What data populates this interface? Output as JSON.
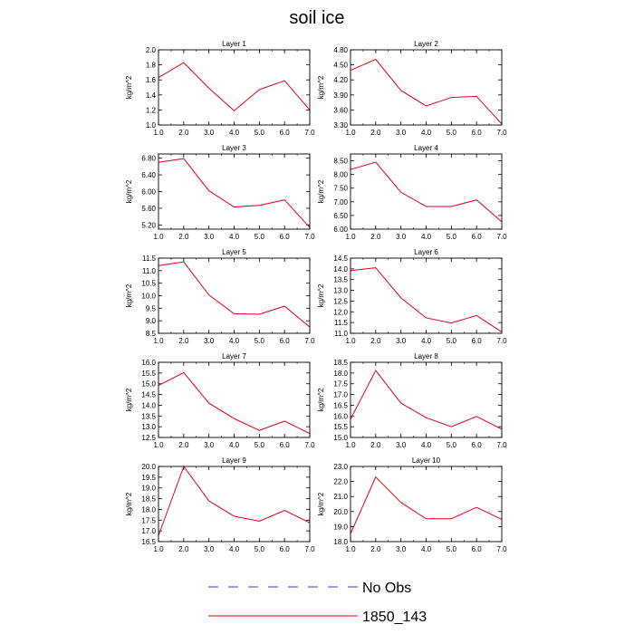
{
  "title": "soil ice",
  "colors": {
    "model_line": "#e8001c",
    "obs_line": "#3a3ad0",
    "axis": "#000000"
  },
  "legend": [
    {
      "label": "No Obs",
      "style": "dashed",
      "color": "#3a3ad0"
    },
    {
      "label": "1850_143",
      "style": "solid",
      "color": "#e8001c"
    }
  ],
  "chart_data": [
    {
      "type": "line",
      "title": "Layer 1",
      "ylabel": "kg/m^2",
      "x": [
        1,
        2,
        3,
        4,
        5,
        6,
        7
      ],
      "xlim": [
        1,
        7
      ],
      "xticks": [
        "1.0",
        "2.0",
        "3.0",
        "4.0",
        "5.0",
        "6.0",
        "7.0"
      ],
      "ylim": [
        1.0,
        2.0
      ],
      "yticks": [
        "1.0",
        "1.2",
        "1.4",
        "1.6",
        "1.8",
        "2.0"
      ],
      "series": [
        {
          "name": "1850_143",
          "values": [
            1.63,
            1.83,
            1.49,
            1.19,
            1.47,
            1.59,
            1.2
          ]
        }
      ]
    },
    {
      "type": "line",
      "title": "Layer 2",
      "ylabel": "kg/m^2",
      "x": [
        1,
        2,
        3,
        4,
        5,
        6,
        7
      ],
      "xlim": [
        1,
        7
      ],
      "xticks": [
        "1.0",
        "2.0",
        "3.0",
        "4.0",
        "5.0",
        "6.0",
        "7.0"
      ],
      "ylim": [
        3.3,
        4.8
      ],
      "yticks": [
        "3.30",
        "3.60",
        "3.90",
        "4.20",
        "4.50",
        "4.80"
      ],
      "series": [
        {
          "name": "1850_143",
          "values": [
            4.39,
            4.61,
            3.99,
            3.68,
            3.85,
            3.87,
            3.32
          ]
        }
      ]
    },
    {
      "type": "line",
      "title": "Layer 3",
      "ylabel": "kg/m^2",
      "x": [
        1,
        2,
        3,
        4,
        5,
        6,
        7
      ],
      "xlim": [
        1,
        7
      ],
      "xticks": [
        "1.0",
        "2.0",
        "3.0",
        "4.0",
        "5.0",
        "6.0",
        "7.0"
      ],
      "ylim": [
        5.1,
        6.9
      ],
      "yticks": [
        "5.20",
        "5.60",
        "6.00",
        "6.40",
        "6.80"
      ],
      "series": [
        {
          "name": "1850_143",
          "values": [
            6.7,
            6.79,
            6.02,
            5.63,
            5.67,
            5.8,
            5.14
          ]
        }
      ]
    },
    {
      "type": "line",
      "title": "Layer 4",
      "ylabel": "kg/m^2",
      "x": [
        1,
        2,
        3,
        4,
        5,
        6,
        7
      ],
      "xlim": [
        1,
        7
      ],
      "xticks": [
        "1.0",
        "2.0",
        "3.0",
        "4.0",
        "5.0",
        "6.0",
        "7.0"
      ],
      "ylim": [
        6.0,
        8.75
      ],
      "yticks": [
        "6.00",
        "6.50",
        "7.00",
        "7.50",
        "8.00",
        "8.50"
      ],
      "series": [
        {
          "name": "1850_143",
          "values": [
            8.18,
            8.45,
            7.35,
            6.83,
            6.83,
            7.07,
            6.27
          ]
        }
      ]
    },
    {
      "type": "line",
      "title": "Layer 5",
      "ylabel": "kg/m^2",
      "x": [
        1,
        2,
        3,
        4,
        5,
        6,
        7
      ],
      "xlim": [
        1,
        7
      ],
      "xticks": [
        "1.0",
        "2.0",
        "3.0",
        "4.0",
        "5.0",
        "6.0",
        "7.0"
      ],
      "ylim": [
        8.5,
        11.5
      ],
      "yticks": [
        "8.5",
        "9.0",
        "9.5",
        "10.0",
        "10.5",
        "11.0",
        "11.5"
      ],
      "series": [
        {
          "name": "1850_143",
          "values": [
            11.2,
            11.35,
            10.03,
            9.28,
            9.26,
            9.58,
            8.75
          ]
        }
      ]
    },
    {
      "type": "line",
      "title": "Layer 6",
      "ylabel": "kg/m^2",
      "x": [
        1,
        2,
        3,
        4,
        5,
        6,
        7
      ],
      "xlim": [
        1,
        7
      ],
      "xticks": [
        "1.0",
        "2.0",
        "3.0",
        "4.0",
        "5.0",
        "6.0",
        "7.0"
      ],
      "ylim": [
        11.0,
        14.5
      ],
      "yticks": [
        "11.0",
        "11.5",
        "12.0",
        "12.5",
        "13.0",
        "13.5",
        "14.0",
        "14.5"
      ],
      "series": [
        {
          "name": "1850_143",
          "values": [
            13.92,
            14.05,
            12.65,
            11.72,
            11.48,
            11.83,
            11.06
          ]
        }
      ]
    },
    {
      "type": "line",
      "title": "Layer 7",
      "ylabel": "kg/m^2",
      "x": [
        1,
        2,
        3,
        4,
        5,
        6,
        7
      ],
      "xlim": [
        1,
        7
      ],
      "xticks": [
        "1.0",
        "2.0",
        "3.0",
        "4.0",
        "5.0",
        "6.0",
        "7.0"
      ],
      "ylim": [
        12.5,
        16.0
      ],
      "yticks": [
        "12.5",
        "13.0",
        "13.5",
        "14.0",
        "14.5",
        "15.0",
        "15.5",
        "16.0"
      ],
      "series": [
        {
          "name": "1850_143",
          "values": [
            14.92,
            15.52,
            14.1,
            13.38,
            12.83,
            13.26,
            12.68
          ]
        }
      ]
    },
    {
      "type": "line",
      "title": "Layer 8",
      "ylabel": "kg/m^2",
      "x": [
        1,
        2,
        3,
        4,
        5,
        6,
        7
      ],
      "xlim": [
        1,
        7
      ],
      "xticks": [
        "1.0",
        "2.0",
        "3.0",
        "4.0",
        "5.0",
        "6.0",
        "7.0"
      ],
      "ylim": [
        15.0,
        18.5
      ],
      "yticks": [
        "15.0",
        "15.5",
        "16.0",
        "16.5",
        "17.0",
        "17.5",
        "18.0",
        "18.5"
      ],
      "series": [
        {
          "name": "1850_143",
          "values": [
            15.85,
            18.12,
            16.6,
            15.92,
            15.5,
            15.98,
            15.38
          ]
        }
      ]
    },
    {
      "type": "line",
      "title": "Layer 9",
      "ylabel": "kg/m^2",
      "x": [
        1,
        2,
        3,
        4,
        5,
        6,
        7
      ],
      "xlim": [
        1,
        7
      ],
      "xticks": [
        "1.0",
        "2.0",
        "3.0",
        "4.0",
        "5.0",
        "6.0",
        "7.0"
      ],
      "ylim": [
        16.5,
        20.0
      ],
      "yticks": [
        "16.5",
        "17.0",
        "17.5",
        "18.0",
        "18.5",
        "19.0",
        "19.5",
        "20.0"
      ],
      "series": [
        {
          "name": "1850_143",
          "values": [
            16.78,
            20.0,
            18.4,
            17.68,
            17.45,
            17.95,
            17.38
          ]
        }
      ]
    },
    {
      "type": "line",
      "title": "Layer 10",
      "ylabel": "kg/m^2",
      "x": [
        1,
        2,
        3,
        4,
        5,
        6,
        7
      ],
      "xlim": [
        1,
        7
      ],
      "xticks": [
        "1.0",
        "2.0",
        "3.0",
        "4.0",
        "5.0",
        "6.0",
        "7.0"
      ],
      "ylim": [
        18.0,
        23.0
      ],
      "yticks": [
        "18.0",
        "19.0",
        "20.0",
        "21.0",
        "22.0",
        "23.0"
      ],
      "series": [
        {
          "name": "1850_143",
          "values": [
            18.52,
            22.3,
            20.6,
            19.52,
            19.52,
            20.28,
            19.48
          ]
        }
      ]
    }
  ]
}
